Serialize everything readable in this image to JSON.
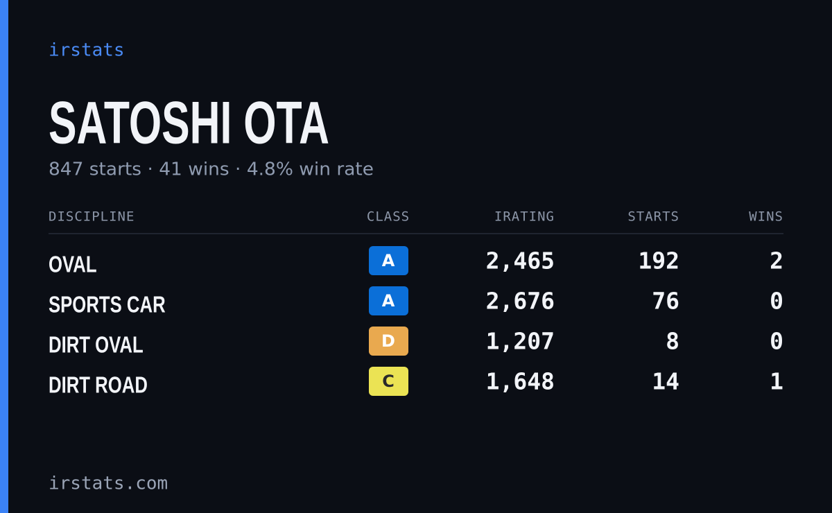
{
  "brand": "irstats",
  "driver": {
    "name": "SATOSHI OTA",
    "summary": "847 starts · 41 wins · 4.8% win rate"
  },
  "table": {
    "headers": [
      "DISCIPLINE",
      "CLASS",
      "IRATING",
      "STARTS",
      "WINS"
    ],
    "rows": [
      {
        "discipline": "OVAL",
        "class": "A",
        "class_color": "#0b6fd8",
        "class_text_color": "#ffffff",
        "irating": "2,465",
        "starts": "192",
        "wins": "2"
      },
      {
        "discipline": "SPORTS CAR",
        "class": "A",
        "class_color": "#0b6fd8",
        "class_text_color": "#ffffff",
        "irating": "2,676",
        "starts": "76",
        "wins": "0"
      },
      {
        "discipline": "DIRT OVAL",
        "class": "D",
        "class_color": "#e9a94f",
        "class_text_color": "#ffffff",
        "irating": "1,207",
        "starts": "8",
        "wins": "0"
      },
      {
        "discipline": "DIRT ROAD",
        "class": "C",
        "class_color": "#ebe354",
        "class_text_color": "#2a2a2a",
        "irating": "1,648",
        "starts": "14",
        "wins": "1"
      }
    ]
  },
  "footer": "irstats.com"
}
